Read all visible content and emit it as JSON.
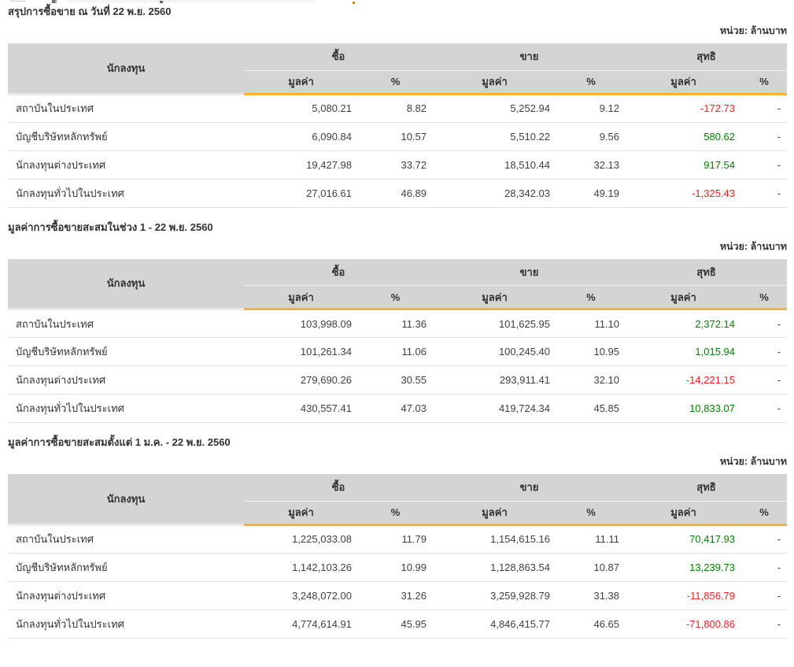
{
  "columns": {
    "investor": "นักลงทุน",
    "buy": "ซื้อ",
    "sell": "ขาย",
    "net": "สุทธิ",
    "value": "มูลค่า",
    "percent": "%"
  },
  "sections": [
    {
      "title": "สรุปการซื้อขาย ณ วันที่ 22 พ.ย. 2560",
      "unit": "หน่วย: ล้านบาท",
      "rows": [
        {
          "investor": "สถาบันในประเทศ",
          "buy_value": "5,080.21",
          "buy_pct": "8.82",
          "sell_value": "5,252.94",
          "sell_pct": "9.12",
          "net_value": "-172.73",
          "net_trend": "negative",
          "net_pct": "-"
        },
        {
          "investor": "บัญชีบริษัทหลักทรัพย์",
          "buy_value": "6,090.84",
          "buy_pct": "10.57",
          "sell_value": "5,510.22",
          "sell_pct": "9.56",
          "net_value": "580.62",
          "net_trend": "positive",
          "net_pct": "-"
        },
        {
          "investor": "นักลงทุนต่างประเทศ",
          "buy_value": "19,427.98",
          "buy_pct": "33.72",
          "sell_value": "18,510.44",
          "sell_pct": "32.13",
          "net_value": "917.54",
          "net_trend": "positive",
          "net_pct": "-"
        },
        {
          "investor": "นักลงทุนทั่วไปในประเทศ",
          "buy_value": "27,016.61",
          "buy_pct": "46.89",
          "sell_value": "28,342.03",
          "sell_pct": "49.19",
          "net_value": "-1,325.43",
          "net_trend": "negative",
          "net_pct": "-"
        }
      ]
    },
    {
      "title": "มูลค่าการซื้อขายสะสมในช่วง 1 - 22 พ.ย. 2560",
      "unit": "หน่วย: ล้านบาท",
      "rows": [
        {
          "investor": "สถาบันในประเทศ",
          "buy_value": "103,998.09",
          "buy_pct": "11.36",
          "sell_value": "101,625.95",
          "sell_pct": "11.10",
          "net_value": "2,372.14",
          "net_trend": "positive",
          "net_pct": "-"
        },
        {
          "investor": "บัญชีบริษัทหลักทรัพย์",
          "buy_value": "101,261.34",
          "buy_pct": "11.06",
          "sell_value": "100,245.40",
          "sell_pct": "10.95",
          "net_value": "1,015.94",
          "net_trend": "positive",
          "net_pct": "-"
        },
        {
          "investor": "นักลงทุนต่างประเทศ",
          "buy_value": "279,690.26",
          "buy_pct": "30.55",
          "sell_value": "293,911.41",
          "sell_pct": "32.10",
          "net_value": "-14,221.15",
          "net_trend": "negative",
          "net_pct": "-"
        },
        {
          "investor": "นักลงทุนทั่วไปในประเทศ",
          "buy_value": "430,557.41",
          "buy_pct": "47.03",
          "sell_value": "419,724.34",
          "sell_pct": "45.85",
          "net_value": "10,833.07",
          "net_trend": "positive",
          "net_pct": "-"
        }
      ]
    },
    {
      "title": "มูลค่าการซื้อขายสะสมตั้งแต่ 1 ม.ค. - 22 พ.ย. 2560",
      "unit": "หน่วย: ล้านบาท",
      "rows": [
        {
          "investor": "สถาบันในประเทศ",
          "buy_value": "1,225,033.08",
          "buy_pct": "11.79",
          "sell_value": "1,154,615.16",
          "sell_pct": "11.11",
          "net_value": "70,417.93",
          "net_trend": "positive",
          "net_pct": "-"
        },
        {
          "investor": "บัญชีบริษัทหลักทรัพย์",
          "buy_value": "1,142,103.26",
          "buy_pct": "10.99",
          "sell_value": "1,128,863.54",
          "sell_pct": "10.87",
          "net_value": "13,239.73",
          "net_trend": "positive",
          "net_pct": "-"
        },
        {
          "investor": "นักลงทุนต่างประเทศ",
          "buy_value": "3,248,072.00",
          "buy_pct": "31.26",
          "sell_value": "3,259,928.79",
          "sell_pct": "31.38",
          "net_value": "-11,856.79",
          "net_trend": "negative",
          "net_pct": "-"
        },
        {
          "investor": "นักลงทุนทั่วไปในประเทศ",
          "buy_value": "4,774,614.91",
          "buy_pct": "45.95",
          "sell_value": "4,846,415.77",
          "sell_pct": "46.65",
          "net_value": "-71,800.86",
          "net_trend": "negative",
          "net_pct": "-"
        }
      ]
    }
  ],
  "colors": {
    "accent": "#f7b231",
    "header-bg": "#d4d4d4",
    "negative": "#ff1f1f",
    "positive": "#008000"
  }
}
